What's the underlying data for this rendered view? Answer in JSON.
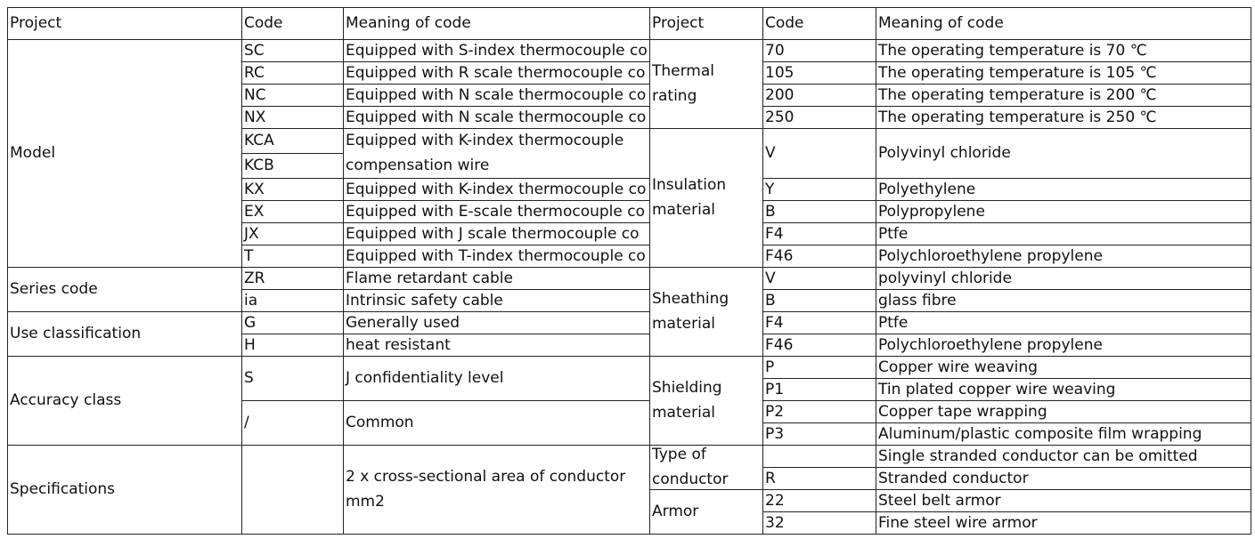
{
  "headers": [
    "Project",
    "Code",
    "Meaning of code",
    "Project",
    "Code",
    "Meaning of code"
  ],
  "left": [
    {
      "project": "Model",
      "items": [
        {
          "code": "SC",
          "meaning": "Equipped with S-index thermocouple co"
        },
        {
          "code": "RC",
          "meaning": "Equipped with R scale thermocouple co"
        },
        {
          "code": "NC",
          "meaning": "Equipped with N scale thermocouple co"
        },
        {
          "code": "NX",
          "meaning": "Equipped with N scale thermocouple co"
        },
        {
          "codes": [
            "KCA",
            "KCB"
          ],
          "meaning": "Equipped with K-index thermocouple compensation wire"
        },
        {
          "code": "KX",
          "meaning": "Equipped with K-index thermocouple co"
        },
        {
          "code": "EX",
          "meaning": "Equipped with E-scale thermocouple co"
        },
        {
          "code": "JX",
          "meaning": "Equipped with J scale thermocouple co"
        },
        {
          "code": "T",
          "meaning": "Equipped with T-index thermocouple co"
        }
      ]
    },
    {
      "project": "Series code",
      "items": [
        {
          "code": "ZR",
          "meaning": "Flame retardant cable"
        },
        {
          "code": "ia",
          "meaning": "Intrinsic safety cable"
        }
      ]
    },
    {
      "project": "Use classification",
      "items": [
        {
          "code": "G",
          "meaning": "Generally used"
        },
        {
          "code": "H",
          "meaning": "heat resistant"
        }
      ]
    },
    {
      "project": "Accuracy class",
      "items": [
        {
          "code": "S",
          "meaning": "J confidentiality level"
        },
        {
          "code": "/",
          "meaning": "Common"
        }
      ]
    },
    {
      "project": "Specifications",
      "items": [
        {
          "meaning": "2 x cross-sectional area of conductor mm2"
        }
      ]
    }
  ],
  "right": [
    {
      "project": "Thermal rating",
      "items": [
        {
          "code": "70",
          "meaning": "The operating temperature is 70 ℃"
        },
        {
          "code": "105",
          "meaning": "The operating temperature is 105 ℃"
        },
        {
          "code": "200",
          "meaning": "The operating temperature is 200 ℃"
        },
        {
          "code": "250",
          "meaning": "The operating temperature is 250 ℃"
        }
      ]
    },
    {
      "project": "Insulation material",
      "items": [
        {
          "code": "V",
          "meaning": "Polyvinyl chloride"
        },
        {
          "code": "Y",
          "meaning": "Polyethylene"
        },
        {
          "code": "B",
          "meaning": "Polypropylene"
        },
        {
          "code": "F4",
          "meaning": "Ptfe"
        },
        {
          "code": "F46",
          "meaning": "Polychloroethylene propylene"
        }
      ]
    },
    {
      "project": "Sheathing material",
      "items": [
        {
          "code": "V",
          "meaning": "polyvinyl chloride"
        },
        {
          "code": "B",
          "meaning": "glass fibre"
        },
        {
          "code": "F4",
          "meaning": "Ptfe"
        },
        {
          "code": "F46",
          "meaning": "Polychloroethylene propylene"
        }
      ]
    },
    {
      "project": "Shielding material",
      "items": [
        {
          "code": "P",
          "meaning": "Copper wire weaving"
        },
        {
          "code": "P1",
          "meaning": "Tin plated copper wire weaving"
        },
        {
          "code": "P2",
          "meaning": "Copper tape wrapping"
        },
        {
          "code": "P3",
          "meaning": "Aluminum/plastic composite film wrapping"
        }
      ]
    },
    {
      "project": "Type of conductor",
      "items": [
        {
          "meaning": "Single stranded conductor can be omitted"
        },
        {
          "code": "R",
          "meaning": "Stranded conductor"
        }
      ]
    },
    {
      "project": "Armor",
      "items": [
        {
          "code": "22",
          "meaning": "Steel belt armor"
        },
        {
          "code": "32",
          "meaning": "Fine steel wire armor"
        }
      ]
    }
  ]
}
